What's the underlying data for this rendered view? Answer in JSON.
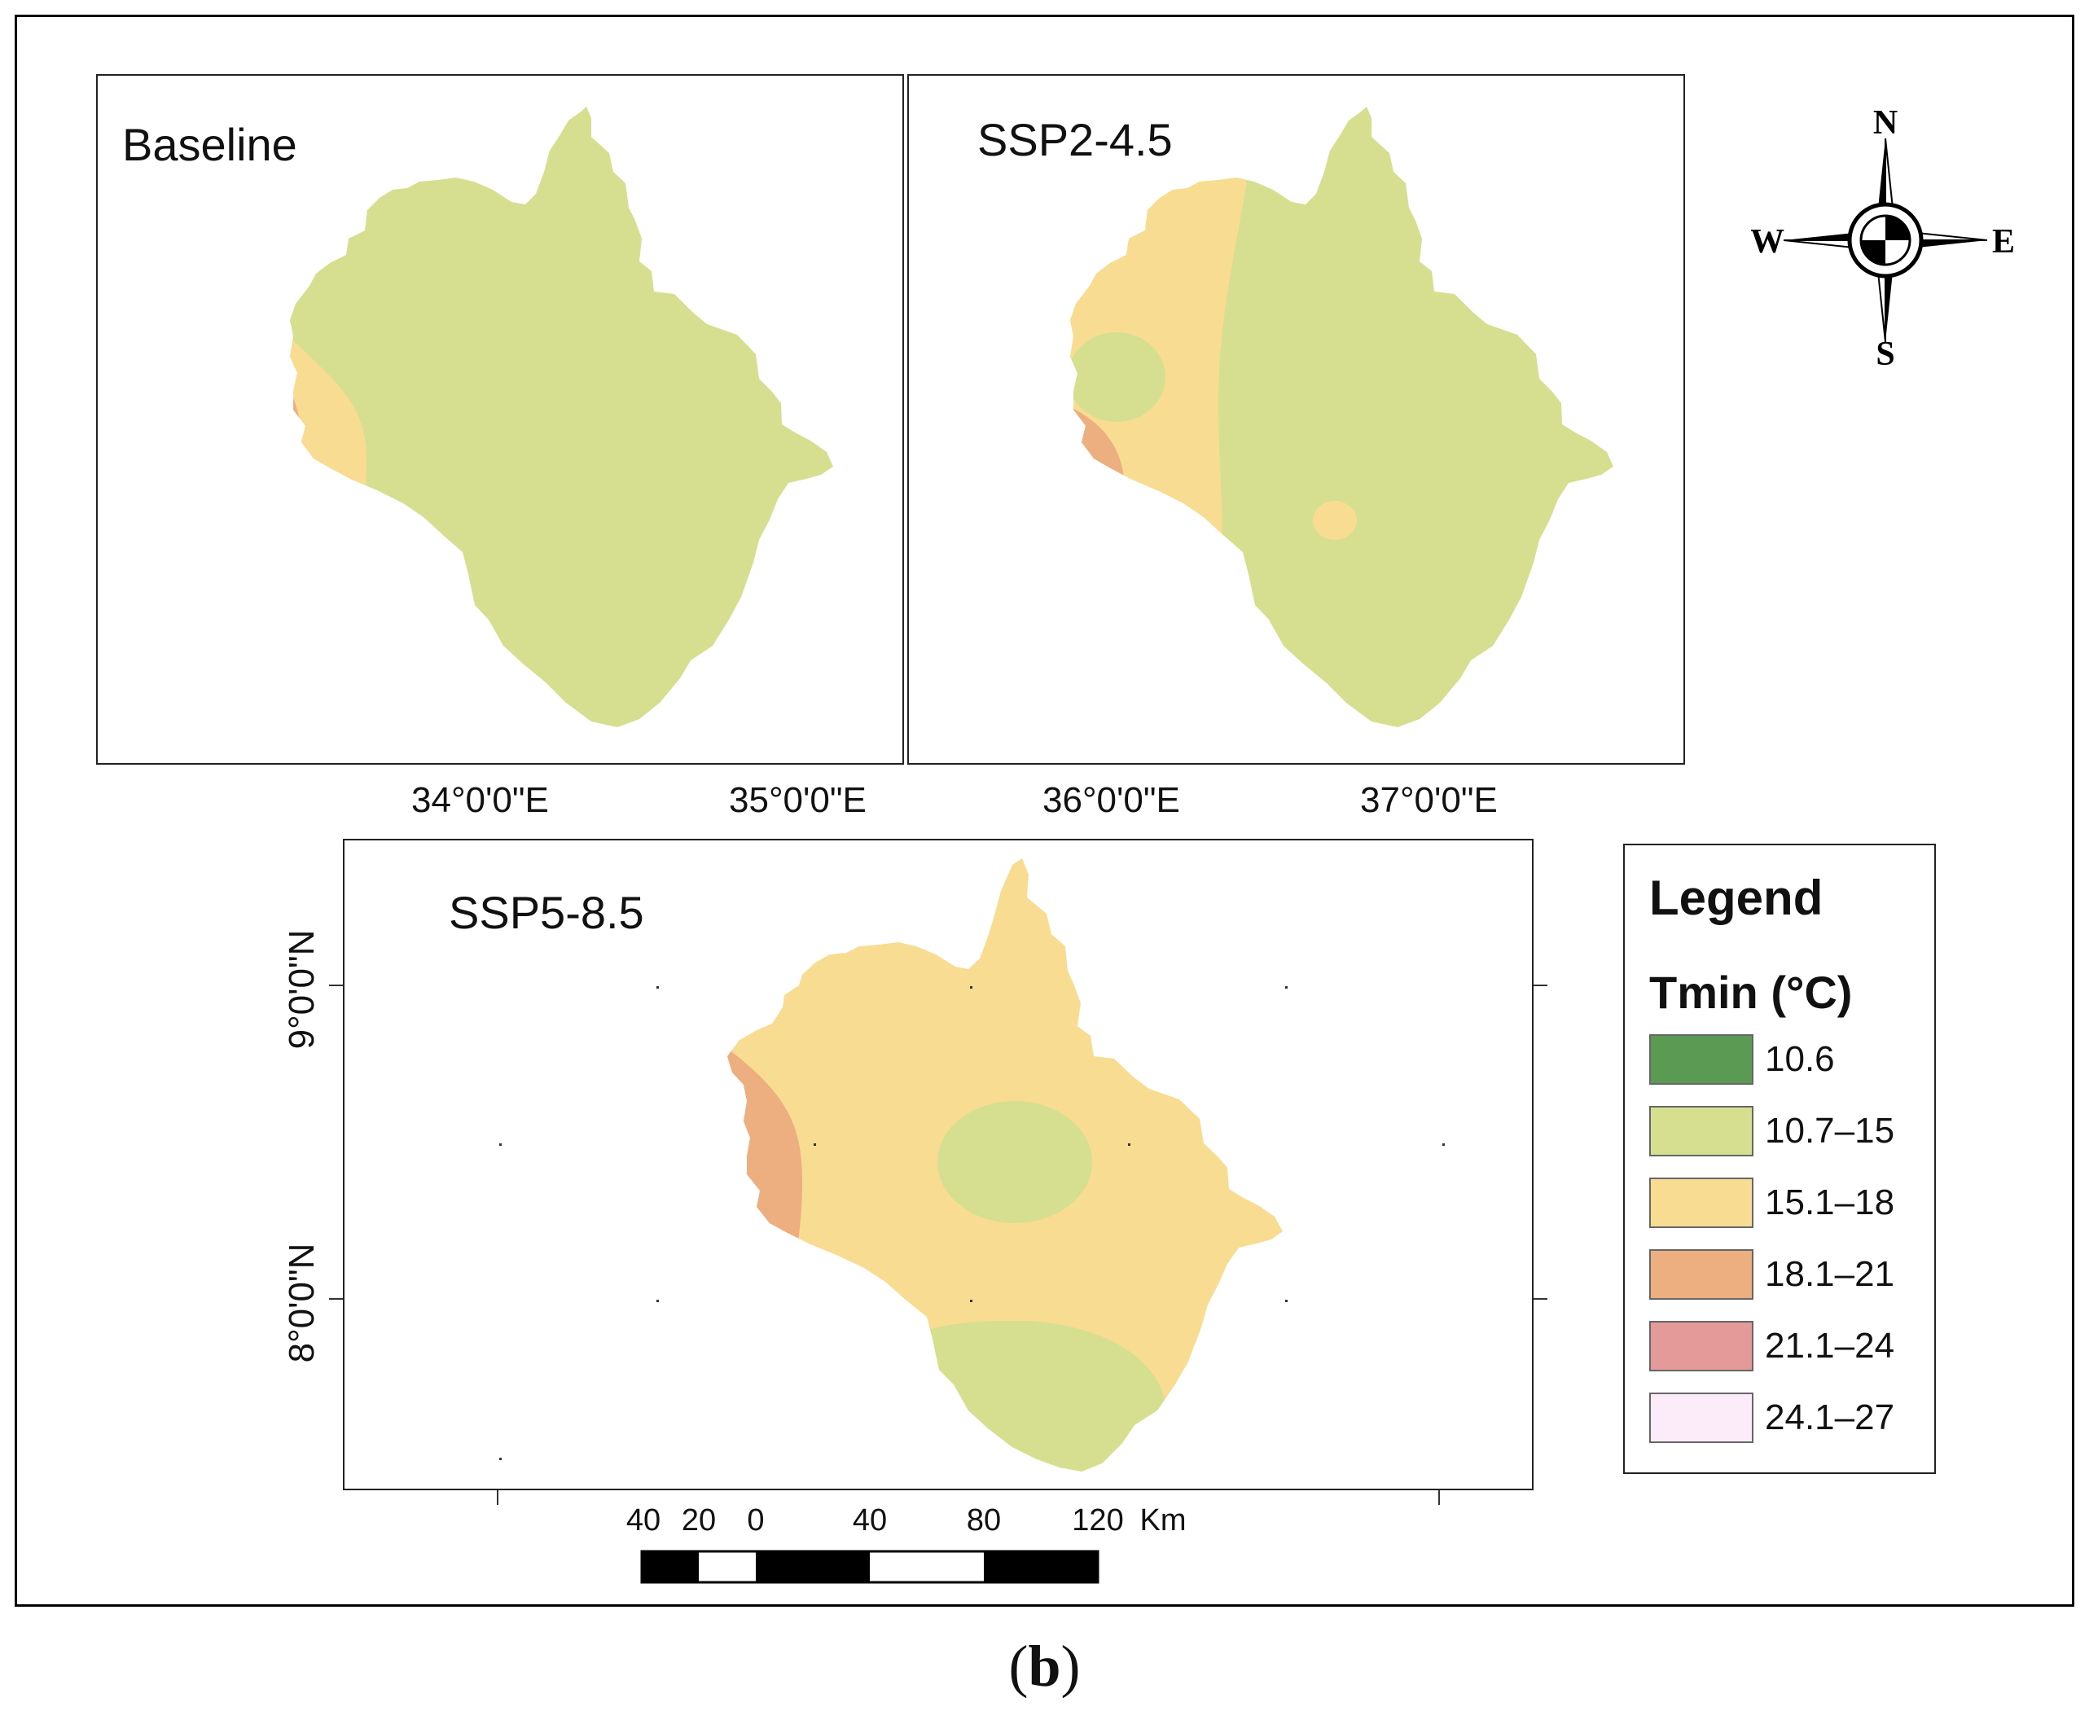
{
  "panels": [
    {
      "title": "Baseline"
    },
    {
      "title": "SSP2-4.5"
    },
    {
      "title": "SSP5-8.5"
    }
  ],
  "longitude_labels": [
    "34°0'0\"E",
    "35°0'0\"E",
    "36°0'0\"E",
    "37°0'0\"E"
  ],
  "latitude_labels": [
    "9°0'0\"N",
    "8°0'0\"N"
  ],
  "compass": {
    "n": "N",
    "s": "S",
    "e": "E",
    "w": "W"
  },
  "legend": {
    "title": "Legend",
    "subtitle": "Tmin (°C)",
    "items": [
      {
        "label": "10.6",
        "color": "#5b9a52"
      },
      {
        "label": "10.7–15",
        "color": "#d6de8f"
      },
      {
        "label": "15.1–18",
        "color": "#f8dc91"
      },
      {
        "label": "18.1–21",
        "color": "#edae80"
      },
      {
        "label": "21.1–24",
        "color": "#e39a99"
      },
      {
        "label": "24.1–27",
        "color": "#fcebf8"
      }
    ]
  },
  "scale_bar": {
    "ticks": [
      "40",
      "20",
      "0",
      "40",
      "80",
      "120"
    ],
    "unit": "Km"
  },
  "caption": {
    "open": "(",
    "letter": "b",
    "close": ")"
  }
}
